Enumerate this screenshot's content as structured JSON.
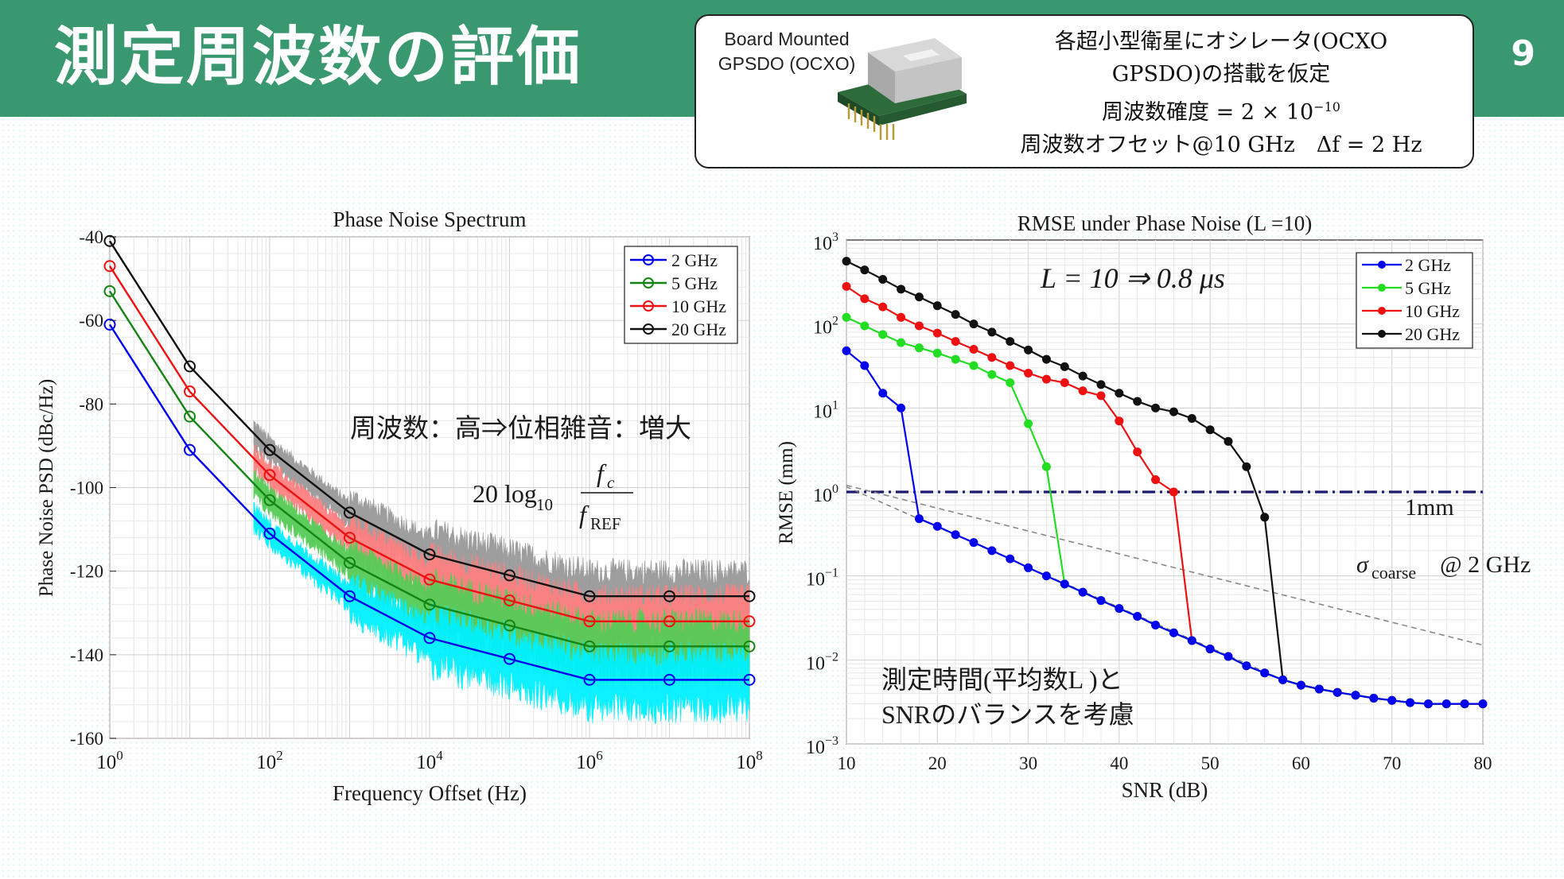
{
  "slide": {
    "title": "測定周波数の評価",
    "page_number": "9"
  },
  "info_box": {
    "board_label_line1": "Board Mounted",
    "board_label_line2": "GPSDO (OCXO)",
    "line1": "各超小型衛星にオシレータ(OCXO",
    "line2": "GPSDO)の搭載を仮定",
    "line3_prefix": "周波数確度 = 2 × 10",
    "line3_exponent": "−10",
    "line4": "周波数オフセット@10 GHz　Δf = 2 Hz"
  },
  "colors": {
    "header_green": "#3a9870",
    "blue": "#0000ee",
    "green_left": "#128512",
    "green_right": "#22dd22",
    "red": "#ee1111",
    "black": "#111111",
    "cyan": "#00f0ff",
    "dark_blue_dashdot": "#1a1a6e"
  },
  "chart_data": [
    {
      "type": "line",
      "title": "Phase Noise Spectrum",
      "xlabel": "Frequency Offset (Hz)",
      "ylabel": "Phase Noise PSD (dBc/Hz)",
      "xscale": "log",
      "xlim_exponents": [
        0,
        8
      ],
      "ylim": [
        -160,
        -40
      ],
      "x_tick_labels": [
        "10^0",
        "10^2",
        "10^4",
        "10^6",
        "10^8"
      ],
      "y_ticks": [
        -40,
        -60,
        -80,
        -100,
        -120,
        -140,
        -160
      ],
      "legend": [
        "2 GHz",
        "5 GHz",
        "10 GHz",
        "20 GHz"
      ],
      "legend_position": "top-right",
      "x_exponents": [
        0,
        1,
        2,
        3,
        4,
        5,
        6,
        7,
        8
      ],
      "series": [
        {
          "name": "2 GHz",
          "color_key": "blue",
          "noise_color_key": "cyan",
          "values": [
            -61,
            -91,
            -111,
            -126,
            -136,
            -141,
            -146,
            -146,
            -146
          ]
        },
        {
          "name": "5 GHz",
          "color_key": "green_left",
          "noise_color": "#55cc55",
          "values": [
            -53,
            -83,
            -103,
            -118,
            -128,
            -133,
            -138,
            -138,
            -138
          ]
        },
        {
          "name": "10 GHz",
          "color_key": "red",
          "noise_color": "#ff8080",
          "values": [
            -47,
            -77,
            -97,
            -112,
            -122,
            -127,
            -132,
            -132,
            -132
          ]
        },
        {
          "name": "20 GHz",
          "color_key": "black",
          "noise_color": "#999999",
          "values": [
            -41,
            -71,
            -91,
            -106,
            -116,
            -121,
            -126,
            -126,
            -126
          ]
        }
      ],
      "annotations": {
        "text1": "周波数：高⇒位相雑音：増大",
        "formula_coef": "20 log",
        "formula_sub": "10",
        "formula_num": "f",
        "formula_num_sub": "c",
        "formula_den": "f",
        "formula_den_sub": "REF"
      }
    },
    {
      "type": "line",
      "title": "RMSE under Phase Noise (L =10)",
      "xlabel": "SNR (dB)",
      "ylabel": "RMSE (mm)",
      "yscale": "log",
      "xlim": [
        10,
        80
      ],
      "ylim_exponents": [
        -3,
        3
      ],
      "x_ticks": [
        10,
        20,
        30,
        40,
        50,
        60,
        70,
        80
      ],
      "y_tick_exponents": [
        3,
        2,
        1,
        0,
        -1,
        -2,
        -3
      ],
      "legend": [
        "2 GHz",
        "5 GHz",
        "10 GHz",
        "20 GHz"
      ],
      "legend_position": "top-right",
      "snr": [
        10,
        12,
        14,
        16,
        18,
        20,
        22,
        24,
        26,
        28,
        30,
        32,
        34,
        36,
        38,
        40,
        42,
        44,
        46,
        48,
        50,
        52,
        54,
        56,
        58,
        60,
        62,
        64,
        66,
        68,
        70,
        72,
        74,
        76,
        78,
        80
      ],
      "series": [
        {
          "name": "2 GHz",
          "color_key": "blue",
          "values": [
            48,
            32,
            15,
            10,
            0.48,
            0.39,
            0.31,
            0.25,
            0.2,
            0.16,
            0.125,
            0.1,
            0.08,
            0.064,
            0.051,
            0.041,
            0.033,
            0.026,
            0.021,
            0.017,
            0.0135,
            0.011,
            0.0085,
            0.007,
            0.0058,
            0.005,
            0.0045,
            0.0041,
            0.0038,
            0.0035,
            0.0033,
            0.0031,
            0.003,
            0.003,
            0.003,
            0.003
          ]
        },
        {
          "name": "5 GHz",
          "color_key": "green_right",
          "values": [
            120,
            95,
            75,
            60,
            52,
            45,
            38,
            32,
            25,
            20,
            6.5,
            2,
            0.08,
            0.064,
            0.051,
            0.041,
            0.033,
            0.026,
            0.021,
            0.017,
            0.0135,
            0.011,
            0.0085,
            0.007,
            0.0058,
            0.005,
            0.0045,
            0.0041,
            0.0038,
            0.0035,
            0.0033,
            0.0031,
            0.003,
            0.003,
            0.003,
            0.003
          ]
        },
        {
          "name": "10 GHz",
          "color_key": "red",
          "values": [
            280,
            200,
            160,
            120,
            95,
            78,
            62,
            50,
            40,
            32,
            26,
            22,
            20,
            16,
            14,
            7,
            3,
            1.4,
            1.0,
            0.017,
            0.0135,
            0.011,
            0.0085,
            0.007,
            0.0058,
            0.005,
            0.0045,
            0.0041,
            0.0038,
            0.0035,
            0.0033,
            0.0031,
            0.003,
            0.003,
            0.003,
            0.003
          ]
        },
        {
          "name": "20 GHz",
          "color_key": "black",
          "values": [
            560,
            440,
            340,
            260,
            210,
            165,
            130,
            100,
            80,
            62,
            49,
            38,
            31,
            24,
            19,
            15,
            12,
            10,
            9,
            7.5,
            5.5,
            4,
            2,
            0.5,
            0.0058,
            0.005,
            0.0045,
            0.0041,
            0.0038,
            0.0035,
            0.0033,
            0.0031,
            0.003,
            0.003,
            0.003,
            0.003
          ]
        }
      ],
      "reference_line": {
        "label": "1mm",
        "value": 1,
        "style": "dash-dot",
        "color_key": "dark_blue_dashdot"
      },
      "sigma_line": {
        "label_main": "σ",
        "label_sub": "coarse",
        "label_rest": "@ 2 GHz",
        "x": [
          10,
          80
        ],
        "y": [
          1.2,
          0.015
        ]
      },
      "annotations": {
        "L_formula": "L = 10  ⇒  0.8 μs",
        "tradeoff_line1": "測定時間(平均数L )と",
        "tradeoff_line2": "SNRのバランスを考慮"
      }
    }
  ]
}
